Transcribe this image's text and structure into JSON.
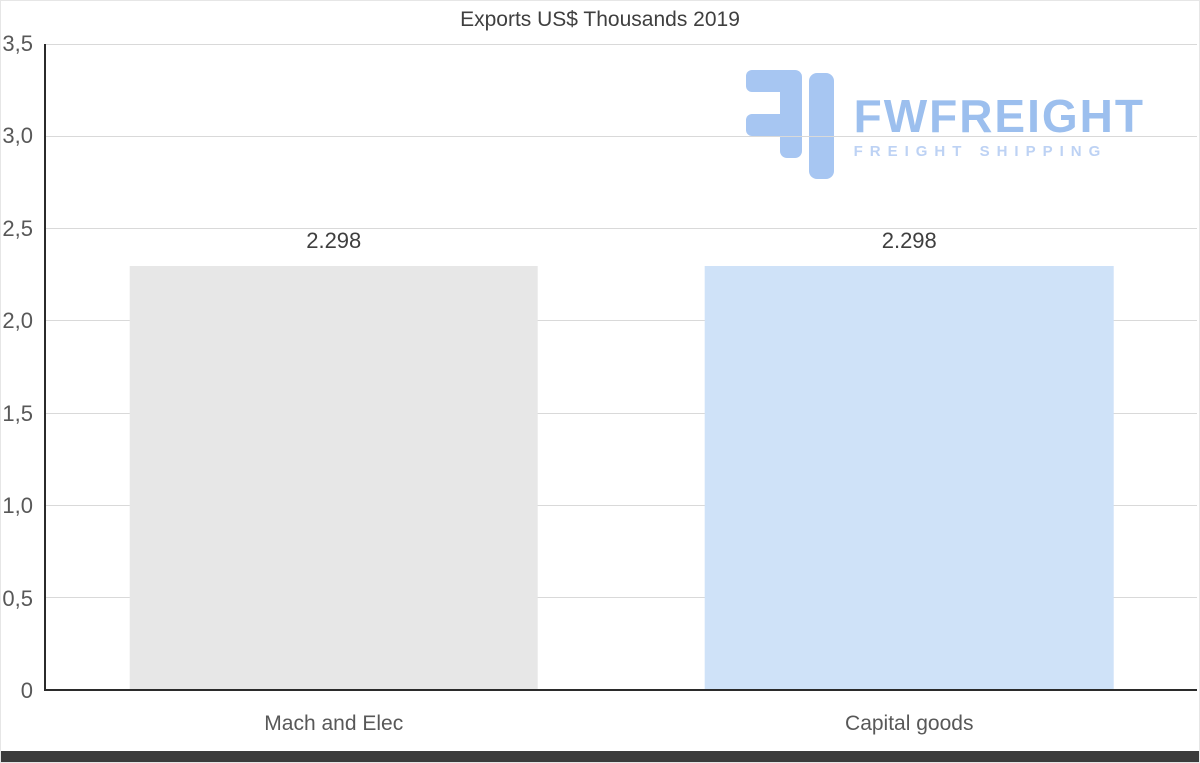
{
  "chart_data": {
    "type": "bar",
    "title": "Exports US$ Thousands 2019",
    "categories": [
      "Mach and Elec",
      "Capital goods"
    ],
    "values": [
      2.298,
      2.298
    ],
    "value_labels": [
      "2.298",
      "2.298"
    ],
    "bar_colors": [
      "#e7e7e7",
      "#cfe2f8"
    ],
    "xlabel": "",
    "ylabel": "",
    "ylim": [
      0,
      3.5
    ],
    "ytick_step": 0.5,
    "ytick_labels": [
      "0",
      "0,5",
      "1,0",
      "1,5",
      "2,0",
      "2,5",
      "3,0",
      "3,5"
    ],
    "grid": true,
    "legend": "none"
  },
  "watermark": {
    "brand": "FWFREIGHT",
    "tagline": "FREIGHT SHIPPING",
    "icon_color": "#a7c6f2",
    "brand_color": "#9cbfee",
    "tagline_color": "#bdd2f4"
  }
}
